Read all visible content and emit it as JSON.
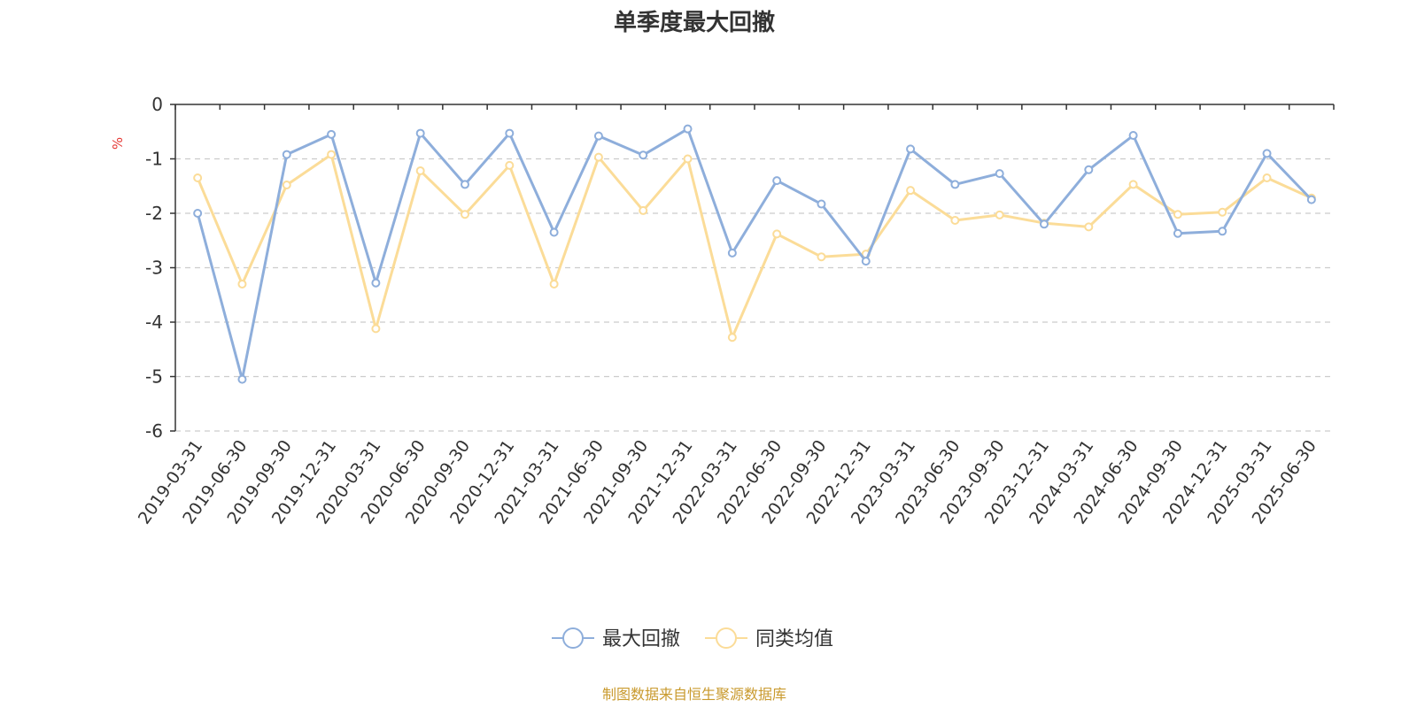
{
  "chart_data": {
    "type": "line",
    "title": "单季度最大回撤",
    "ylabel": "%",
    "ylim": [
      -6,
      0
    ],
    "yticks": [
      0,
      -1,
      -2,
      -3,
      -4,
      -5,
      -6
    ],
    "grid": true,
    "legend_position": "bottom-center",
    "categories": [
      "2019-03-31",
      "2019-06-30",
      "2019-09-30",
      "2019-12-31",
      "2020-03-31",
      "2020-06-30",
      "2020-09-30",
      "2020-12-31",
      "2021-03-31",
      "2021-06-30",
      "2021-09-30",
      "2021-12-31",
      "2022-03-31",
      "2022-06-30",
      "2022-09-30",
      "2022-12-31",
      "2023-03-31",
      "2023-06-30",
      "2023-09-30",
      "2023-12-31",
      "2024-03-31",
      "2024-06-30",
      "2024-09-30",
      "2024-12-31",
      "2025-03-31",
      "2025-06-30"
    ],
    "series": [
      {
        "name": "最大回撤",
        "color": "#8eaedb",
        "values": [
          -2.0,
          -5.05,
          -0.92,
          -0.55,
          -3.28,
          -0.53,
          -1.47,
          -0.53,
          -2.35,
          -0.58,
          -0.93,
          -0.45,
          -2.73,
          -1.4,
          -1.83,
          -2.88,
          -0.82,
          -1.47,
          -1.27,
          -2.2,
          -1.2,
          -0.57,
          -2.37,
          -2.33,
          -0.9,
          -1.75
        ]
      },
      {
        "name": "同类均值",
        "color": "#fbdc98",
        "values": [
          -1.35,
          -3.3,
          -1.48,
          -0.92,
          -4.12,
          -1.22,
          -2.02,
          -1.12,
          -3.3,
          -0.97,
          -1.95,
          -1.0,
          -4.28,
          -2.38,
          -2.8,
          -2.75,
          -1.58,
          -2.13,
          -2.03,
          -2.18,
          -2.25,
          -1.47,
          -2.02,
          -1.98,
          -1.35,
          -1.72
        ]
      }
    ]
  },
  "source_note": "制图数据来自恒生聚源数据库"
}
